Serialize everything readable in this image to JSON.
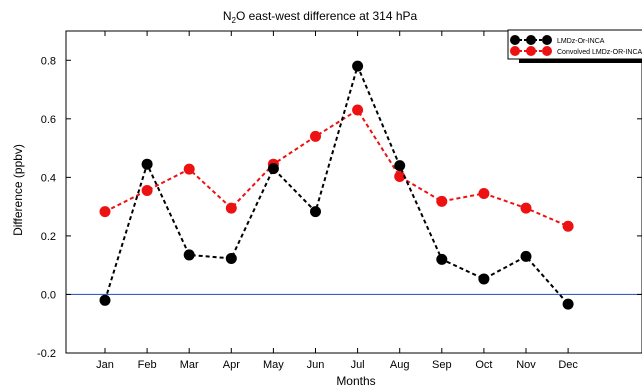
{
  "chart_data": {
    "type": "line",
    "title_main": "N",
    "title_sub": "2",
    "title_rest": "O east-west difference at 314 hPa",
    "xlabel": "Months",
    "ylabel": "Difference (ppbv)",
    "categories": [
      "Jan",
      "Feb",
      "Mar",
      "Apr",
      "May",
      "Jun",
      "Jul",
      "Aug",
      "Sep",
      "Oct",
      "Nov",
      "Dec"
    ],
    "ylim": [
      -0.2,
      0.9
    ],
    "yticks": [
      -0.2,
      0.0,
      0.2,
      0.4,
      0.6,
      0.8
    ],
    "ytick_labels": [
      "-0.2",
      "0.0",
      "0.2",
      "0.4",
      "0.6",
      "0.8"
    ],
    "reference_line": 0.0,
    "reference_color": "#3b5fc9",
    "legend_placement": "top-right",
    "series": [
      {
        "name": "LMDz-Or-INCA",
        "color": "#000000",
        "values": [
          -0.02,
          0.445,
          0.135,
          0.123,
          0.43,
          0.283,
          0.78,
          0.44,
          0.12,
          0.053,
          0.13,
          -0.033
        ]
      },
      {
        "name": "Convolved LMDz-OR-INCA",
        "color": "#ee1111",
        "values": [
          0.283,
          0.355,
          0.428,
          0.295,
          0.445,
          0.54,
          0.63,
          0.403,
          0.318,
          0.345,
          0.295,
          0.233
        ]
      }
    ]
  }
}
